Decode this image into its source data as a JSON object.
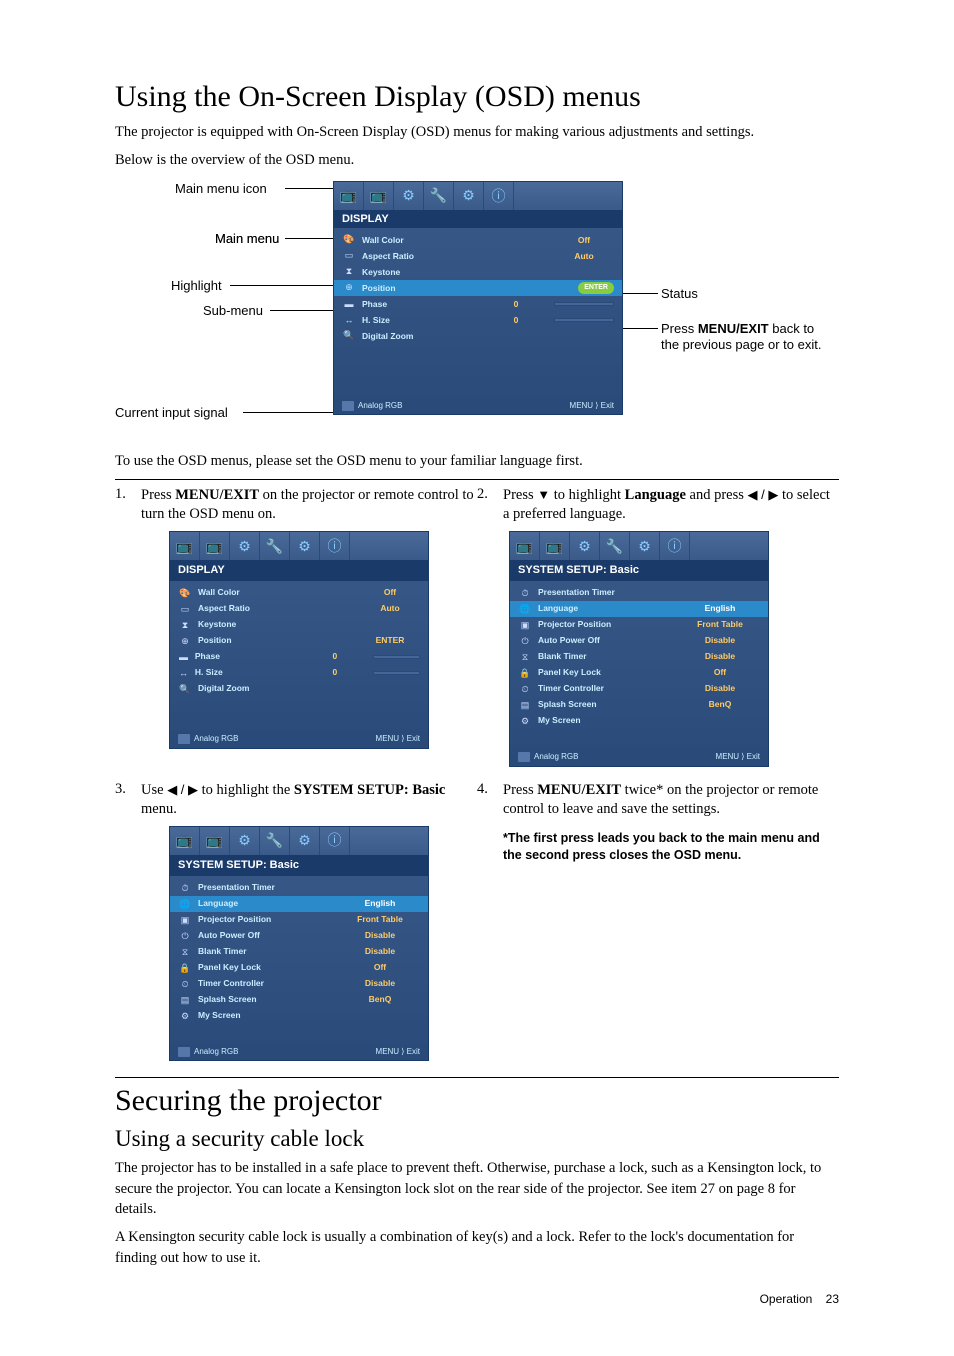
{
  "page": {
    "title1": "Using the On-Screen Display (OSD) menus",
    "intro1": "The projector is equipped with On-Screen Display (OSD) menus for making various adjustments and settings.",
    "intro2": "Below is the overview of the OSD menu.",
    "callouts": {
      "main_menu_icon": "Main menu icon",
      "main_menu": "Main menu",
      "highlight": "Highlight",
      "sub_menu": "Sub-menu",
      "current_input": "Current input signal",
      "status": "Status",
      "press_menuexit_1": "Press ",
      "press_menuexit_bold": "MENU/EXIT",
      "press_menuexit_2": " back to the previous page or to exit."
    },
    "to_use_text": "To use the OSD menus, please set the OSD menu to your familiar language first.",
    "step1_a": "Press ",
    "step1_bold": "MENU/EXIT",
    "step1_b": " on the projector or remote control to turn the OSD menu on.",
    "step2_a": "Press ",
    "step2_arrow": "▼",
    "step2_b": " to highlight ",
    "step2_bold": "Language",
    "step2_c": " and press ",
    "step2_arrows2": "◀ / ▶",
    "step2_d": " to select a preferred language.",
    "step3_a": "Use ",
    "step3_arrows": "◀ / ▶",
    "step3_b": " to highlight the ",
    "step3_bold": "SYSTEM SETUP: Basic",
    "step3_c": " menu.",
    "step4_a": "Press ",
    "step4_bold": "MENU/EXIT",
    "step4_b": " twice* on the projector or remote control to leave and save the settings.",
    "step4_note": "*The first press leads you back to the main menu and the second press closes the OSD menu.",
    "title2": "Securing the projector",
    "title3": "Using a security cable lock",
    "body2a": "The projector has to be installed in a safe place to prevent theft. Otherwise, purchase a lock, such as a Kensington lock, to secure the projector. You can locate a Kensington lock slot on the rear side of the projector. See item 27 on page 8 for details.",
    "body2b": "A Kensington security cable lock is usually a combination of key(s) and a lock. Refer to the lock's documentation for finding out how to use it.",
    "footer_label": "Operation",
    "footer_page": "23"
  },
  "osd_display": {
    "title": "DISPLAY",
    "rows": [
      {
        "icon": "🎨",
        "label": "Wall Color",
        "value": "Off",
        "slider": false
      },
      {
        "icon": "▭",
        "label": "Aspect Ratio",
        "value": "Auto",
        "slider": false
      },
      {
        "icon": "⧗",
        "label": "Keystone",
        "value": "",
        "slider": false
      },
      {
        "icon": "⊕",
        "label": "Position",
        "value": "ENTER",
        "slider": false,
        "hl": true,
        "enter": true
      },
      {
        "icon": "▬",
        "label": "Phase",
        "value": "0",
        "slider": true
      },
      {
        "icon": "↔",
        "label": "H. Size",
        "value": "0",
        "slider": true
      },
      {
        "icon": "🔍",
        "label": "Digital Zoom",
        "value": "",
        "slider": false
      }
    ],
    "footer_left": "Analog RGB",
    "footer_right": "MENU ⟩ Exit",
    "colors": {
      "bg_top": "#3a5a8a",
      "bg_bottom": "#2a4a7a",
      "title_bg": "#1a3a6a",
      "hl": "#2a8aca",
      "text": "#cceeff",
      "value": "#ffcc66",
      "enter": "#88cc44"
    }
  },
  "osd_setup": {
    "title": "SYSTEM SETUP: Basic",
    "rows": [
      {
        "icon": "⏱",
        "label": "Presentation Timer",
        "value": ""
      },
      {
        "icon": "🌐",
        "label": "Language",
        "value": "English"
      },
      {
        "icon": "▣",
        "label": "Projector Position",
        "value": "Front Table"
      },
      {
        "icon": "⏻",
        "label": "Auto Power Off",
        "value": "Disable"
      },
      {
        "icon": "⧖",
        "label": "Blank Timer",
        "value": "Disable"
      },
      {
        "icon": "🔒",
        "label": "Panel Key Lock",
        "value": "Off"
      },
      {
        "icon": "⏲",
        "label": "Timer Controller",
        "value": "Disable"
      },
      {
        "icon": "▤",
        "label": "Splash Screen",
        "value": "BenQ"
      },
      {
        "icon": "⚙",
        "label": "My Screen",
        "value": ""
      }
    ],
    "hl_index": 1,
    "footer_left": "Analog RGB",
    "footer_right": "MENU ⟩ Exit"
  },
  "tab_icons": [
    "📺",
    "📺",
    "⚙",
    "🔧",
    "⚙",
    "ⓘ"
  ]
}
